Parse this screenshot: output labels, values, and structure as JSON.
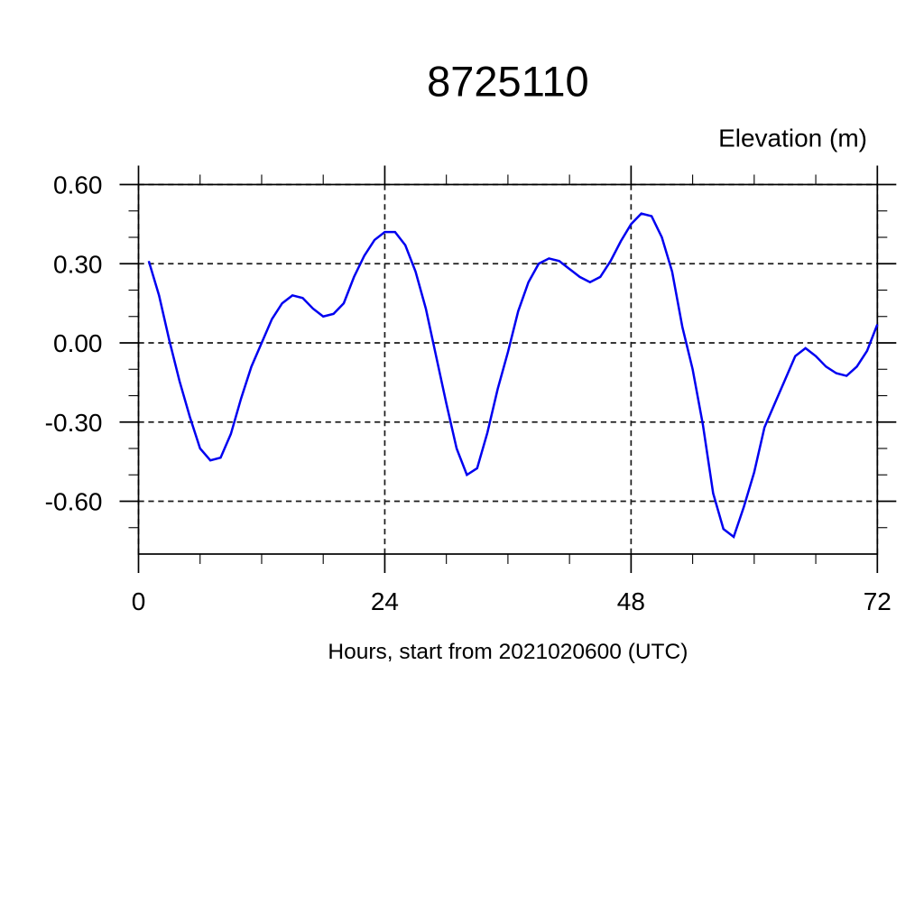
{
  "chart_data": {
    "type": "line",
    "title": "8725110",
    "ylabel": "Elevation (m)",
    "xlabel": "Hours, start from 2021020600 (UTC)",
    "xlim": [
      0,
      72
    ],
    "ylim": [
      -0.8,
      0.6
    ],
    "x_major_ticks": [
      0,
      24,
      48,
      72
    ],
    "x_major_tick_labels": [
      "0",
      "24",
      "48",
      "72"
    ],
    "x_minor_tick_interval": 6,
    "y_major_ticks": [
      0.6,
      0.3,
      0.0,
      -0.3,
      -0.6
    ],
    "y_major_tick_labels": [
      "0.60",
      "0.30",
      "0.00",
      "-0.30",
      "-0.60"
    ],
    "y_minor_tick_interval": 0.1,
    "grid": "dashed on major ticks",
    "legend_position": "none",
    "series": [
      {
        "name": "elevation",
        "color": "#0000f0",
        "x": [
          1,
          2,
          3,
          4,
          5,
          6,
          7,
          8,
          9,
          10,
          11,
          12,
          13,
          14,
          15,
          16,
          17,
          18,
          19,
          20,
          21,
          22,
          23,
          24,
          25,
          26,
          27,
          28,
          29,
          30,
          31,
          32,
          33,
          34,
          35,
          36,
          37,
          38,
          39,
          40,
          41,
          42,
          43,
          44,
          45,
          46,
          47,
          48,
          49,
          50,
          51,
          52,
          53,
          54,
          55,
          56,
          57,
          58,
          59,
          60,
          61,
          62,
          63,
          64,
          65,
          66,
          67,
          68,
          69,
          70,
          71,
          72
        ],
        "values": [
          0.31,
          0.18,
          0.01,
          -0.145,
          -0.28,
          -0.4,
          -0.445,
          -0.435,
          -0.345,
          -0.21,
          -0.09,
          0.0,
          0.09,
          0.15,
          0.18,
          0.17,
          0.13,
          0.1,
          0.11,
          0.15,
          0.25,
          0.33,
          0.39,
          0.42,
          0.42,
          0.37,
          0.27,
          0.13,
          -0.05,
          -0.23,
          -0.4,
          -0.5,
          -0.475,
          -0.34,
          -0.175,
          -0.035,
          0.12,
          0.23,
          0.3,
          0.32,
          0.31,
          0.28,
          0.25,
          0.23,
          0.25,
          0.31,
          0.385,
          0.45,
          0.49,
          0.48,
          0.4,
          0.27,
          0.06,
          -0.1,
          -0.31,
          -0.57,
          -0.705,
          -0.735,
          -0.62,
          -0.49,
          -0.32,
          -0.23,
          -0.14,
          -0.05,
          -0.02,
          -0.05,
          -0.09,
          -0.115,
          -0.125,
          -0.09,
          -0.03,
          0.07
        ]
      }
    ],
    "axis_color": "#000000",
    "grid_color": "#1a1a1a",
    "background_color": "#ffffff"
  }
}
